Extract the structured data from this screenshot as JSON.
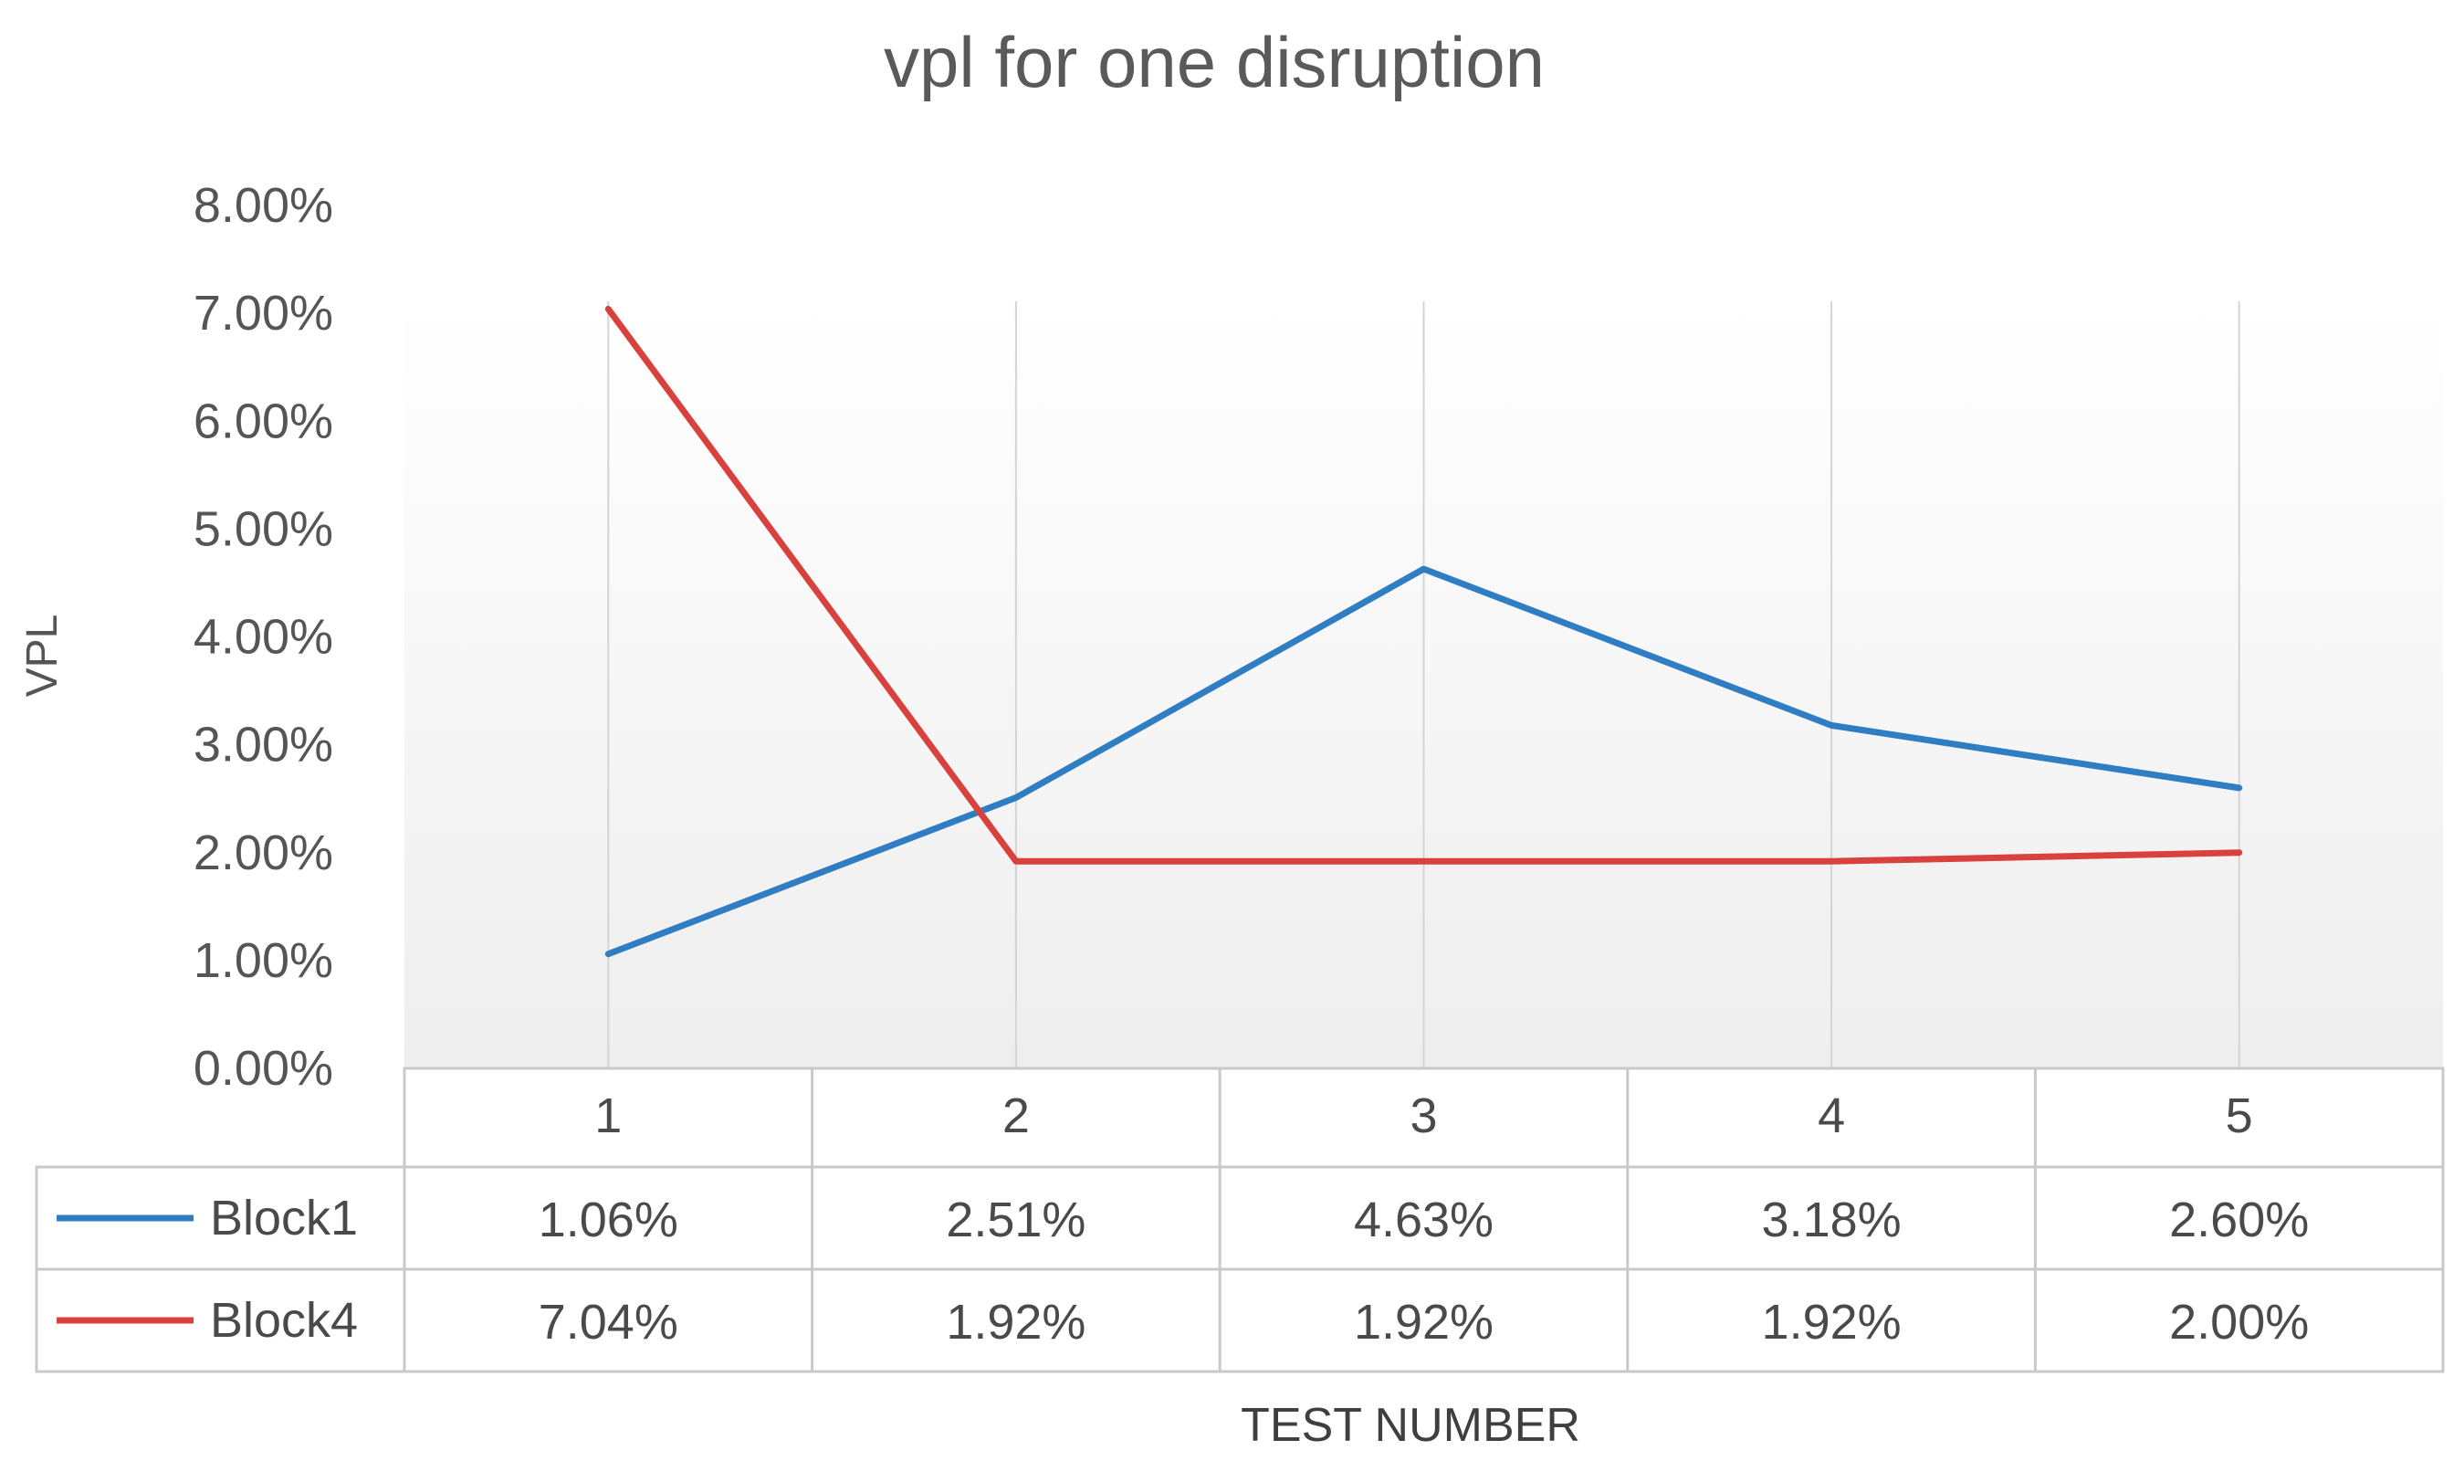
{
  "chart_data": {
    "type": "line",
    "title": "vpl for one disruption",
    "xlabel": "TEST NUMBER",
    "ylabel": "VPL",
    "categories": [
      "1",
      "2",
      "3",
      "4",
      "5"
    ],
    "ylim": [
      0,
      0.08
    ],
    "yticks": [
      "0.00%",
      "1.00%",
      "2.00%",
      "3.00%",
      "4.00%",
      "5.00%",
      "6.00%",
      "7.00%",
      "8.00%"
    ],
    "grid": "vertical",
    "legend": "data-table",
    "series": [
      {
        "name": "Block1",
        "color": "#2f7dc2",
        "values": [
          0.0106,
          0.0251,
          0.0463,
          0.0318,
          0.026
        ],
        "labels": [
          "1.06%",
          "2.51%",
          "4.63%",
          "3.18%",
          "2.60%"
        ]
      },
      {
        "name": "Block4",
        "color": "#d9413f",
        "values": [
          0.0704,
          0.0192,
          0.0192,
          0.0192,
          0.02
        ],
        "labels": [
          "7.04%",
          "1.92%",
          "1.92%",
          "1.92%",
          "2.00%"
        ]
      }
    ]
  }
}
